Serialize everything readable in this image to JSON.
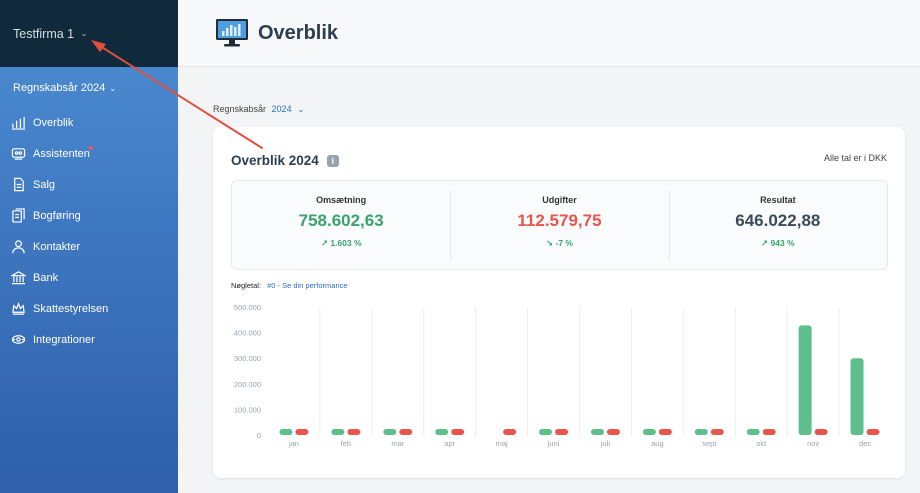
{
  "sidebar": {
    "company": "Testfirma 1",
    "fiscal_year": "Regnskabsår 2024",
    "items": [
      {
        "label": "Overblik",
        "icon": "bar-chart-icon"
      },
      {
        "label": "Assistenten",
        "icon": "assistant-icon"
      },
      {
        "label": "Salg",
        "icon": "invoice-icon"
      },
      {
        "label": "Bogføring",
        "icon": "documents-icon"
      },
      {
        "label": "Kontakter",
        "icon": "person-icon"
      },
      {
        "label": "Bank",
        "icon": "bank-icon"
      },
      {
        "label": "Skattestyrelsen",
        "icon": "crown-icon"
      },
      {
        "label": "Integrationer",
        "icon": "integrations-icon"
      }
    ]
  },
  "header": {
    "title": "Overblik",
    "icon": "monitor-icon"
  },
  "fiscal_select": {
    "label": "Regnskabsår",
    "value": "2024"
  },
  "card": {
    "title": "Overblik 2024",
    "info_icon": "i",
    "currency_note": "Alle tal er i DKK",
    "kpis": [
      {
        "label": "Omsætning",
        "value": "758.602,63",
        "change": "1.603 %",
        "color": "#3aa36f"
      },
      {
        "label": "Udgifter",
        "value": "112.579,75",
        "change": "-7 %",
        "color": "#e8554e"
      },
      {
        "label": "Resultat",
        "value": "646.022,88",
        "change": "943 %",
        "color": "#3d4a57"
      }
    ],
    "nogletal_label": "Nøgletal:",
    "nogletal_link": "#0 - Se din performance"
  },
  "chart_data": {
    "type": "bar",
    "categories": [
      "jan",
      "feb",
      "mar",
      "apr",
      "maj",
      "juni",
      "juli",
      "aug",
      "sept",
      "okt",
      "nov",
      "dec"
    ],
    "series": [
      {
        "color": "#5cbf8c",
        "values": [
          1200,
          1200,
          1200,
          1200,
          0,
          1200,
          1200,
          1200,
          1200,
          1200,
          428000,
          300000
        ]
      },
      {
        "color": "#e8554e",
        "values": [
          14000,
          1200,
          1200,
          1200,
          1200,
          1200,
          1200,
          1200,
          1200,
          1200,
          1200,
          20000
        ]
      }
    ],
    "yticks": [
      "0",
      "100.000",
      "200.000",
      "300.000",
      "400.000",
      "500.000"
    ],
    "ylim": [
      0,
      500000
    ]
  },
  "colors": {
    "accent": "#2d6fc2",
    "arrow": "#e0503e"
  }
}
